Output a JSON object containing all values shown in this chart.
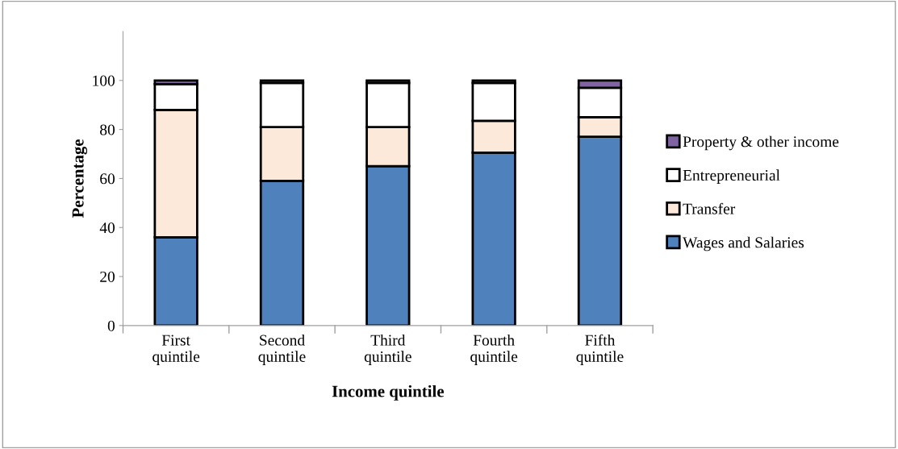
{
  "chart_data": {
    "type": "bar",
    "stacked": true,
    "xlabel": "Income quintile",
    "ylabel": "Percentage",
    "categories": [
      "First\nquintile",
      "Second\nquintile",
      "Third\nquintile",
      "Fourth\nquintile",
      "Fifth\nquintile"
    ],
    "series": [
      {
        "name": "Wages and Salaries",
        "color": "#4f81bd",
        "values": [
          36,
          59,
          65,
          70.5,
          77
        ]
      },
      {
        "name": "Transfer",
        "color": "#fde9d9",
        "values": [
          52,
          22,
          16,
          13,
          8
        ]
      },
      {
        "name": "Entrepreneurial",
        "color": "#ffffff",
        "values": [
          10.5,
          18,
          18,
          15.5,
          12
        ]
      },
      {
        "name": "Property & other income",
        "color": "#8064a2",
        "values": [
          1.5,
          1,
          1,
          1,
          3
        ]
      }
    ],
    "ylim": [
      0,
      120
    ],
    "yticks": [
      0,
      20,
      40,
      60,
      80,
      100
    ],
    "grid": false,
    "legend": "right"
  }
}
